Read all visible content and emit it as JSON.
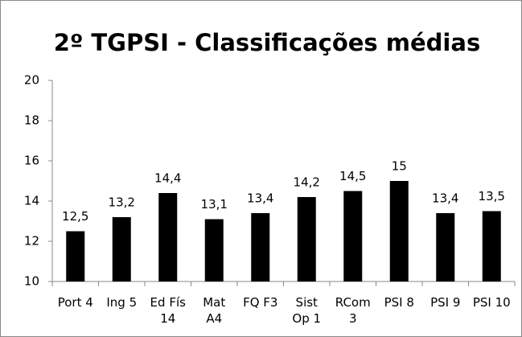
{
  "chart_data": {
    "type": "bar",
    "title": "2º TGPSI - Classificações médias",
    "categories": [
      "Port 4",
      "Ing 5",
      "Ed Fís 14",
      "Mat A4",
      "FQ F3",
      "Sist Op 1",
      "RCom 3",
      "PSI 8",
      "PSI 9",
      "PSI 10"
    ],
    "values": [
      12.5,
      13.2,
      14.4,
      13.1,
      13.4,
      14.2,
      14.5,
      15,
      13.4,
      13.5
    ],
    "value_labels": [
      "12,5",
      "13,2",
      "14,4",
      "13,1",
      "13,4",
      "14,2",
      "14,5",
      "15",
      "13,4",
      "13,5"
    ],
    "color": "#000000",
    "ylim": [
      10,
      20
    ],
    "yticks": [
      10,
      12,
      14,
      16,
      18,
      20
    ],
    "grid": false
  }
}
